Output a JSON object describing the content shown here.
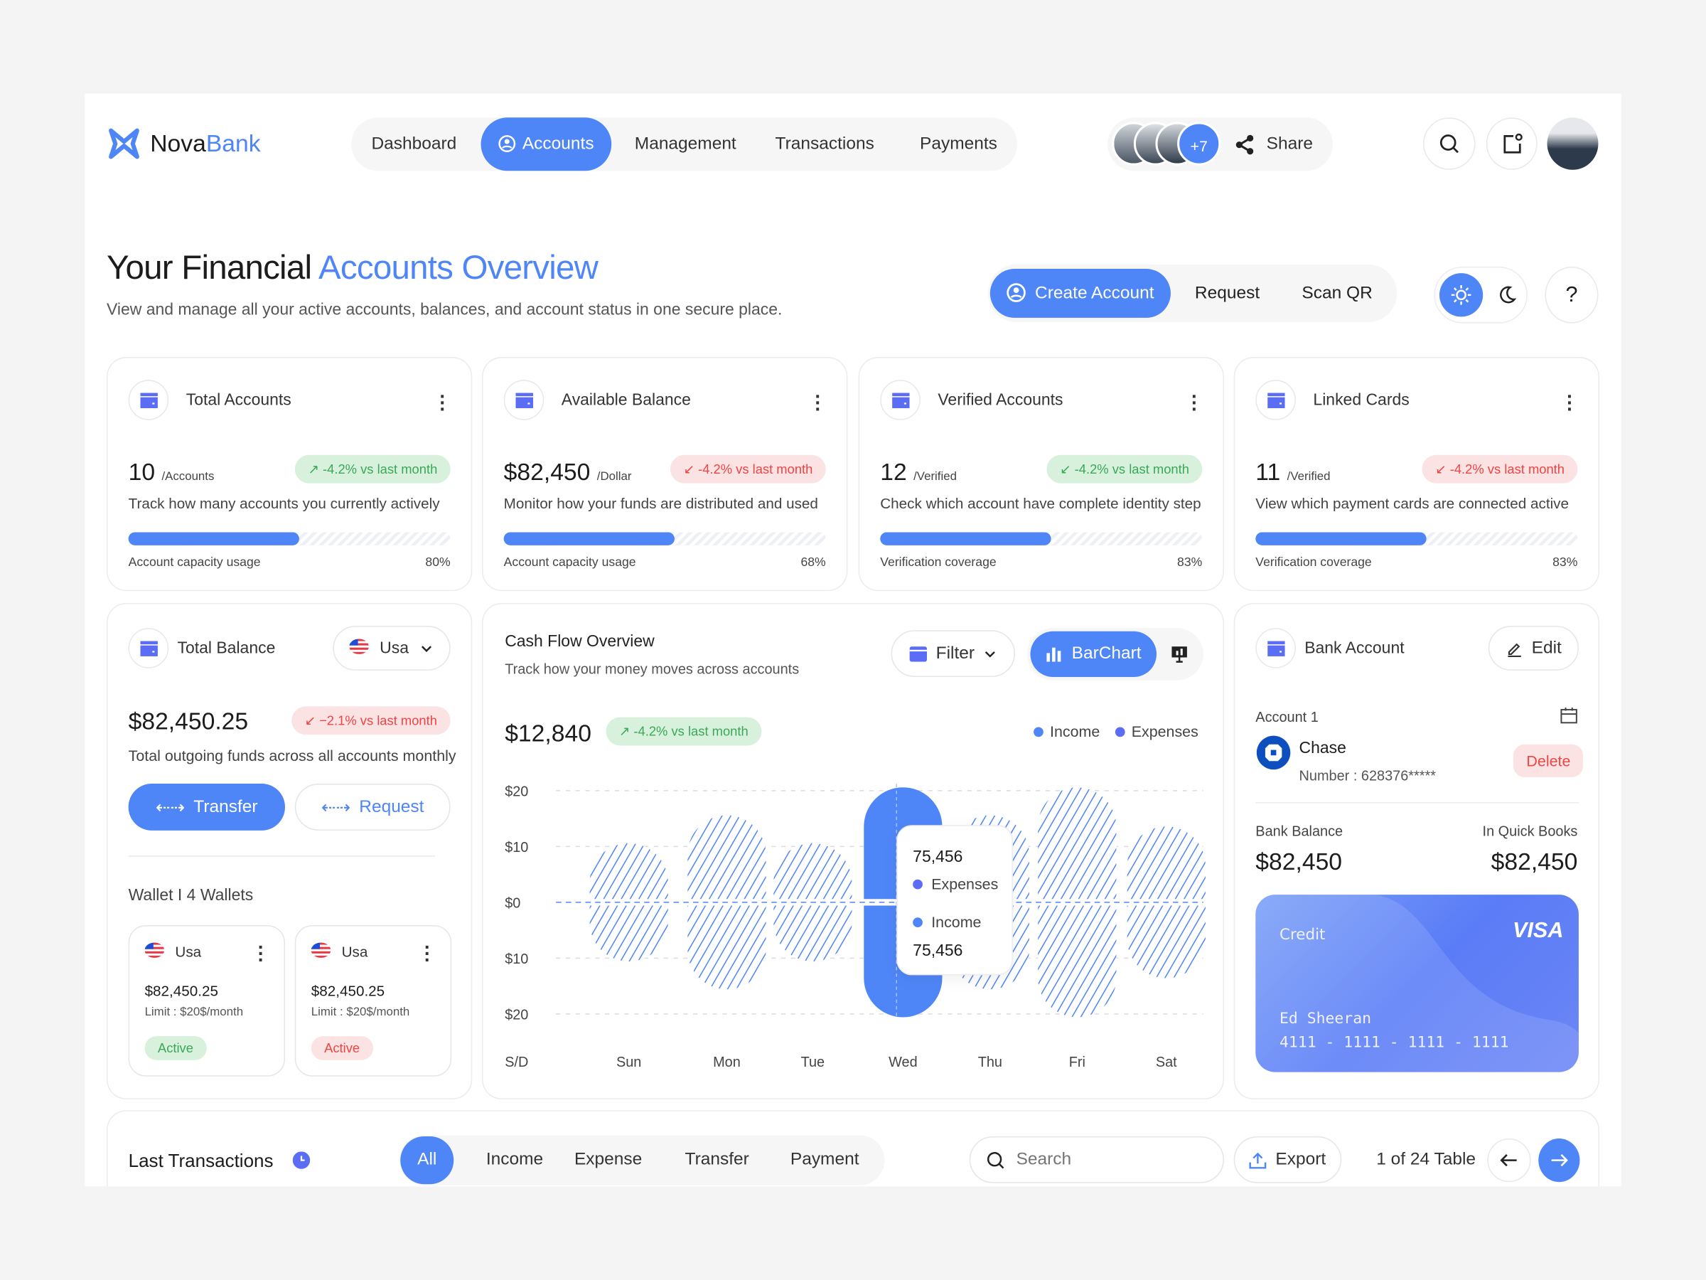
{
  "brand": {
    "name_part1": "Nova",
    "name_part2": "Bank"
  },
  "nav": {
    "items": [
      {
        "label": "Dashboard"
      },
      {
        "label": "Accounts",
        "active": true
      },
      {
        "label": "Management"
      },
      {
        "label": "Transactions"
      },
      {
        "label": "Payments"
      }
    ]
  },
  "team": {
    "extra_count": "+7",
    "share_label": "Share"
  },
  "header": {
    "title_part1": "Your Financial",
    "title_part2": "Accounts Overview",
    "subtitle": "View and manage all your active accounts, balances, and account status in one secure place.",
    "create_label": "Create Account",
    "request_label": "Request",
    "scan_label": "Scan QR",
    "help": "?"
  },
  "stats": [
    {
      "title": "Total Accounts",
      "value": "10",
      "unit": "/Accounts",
      "change": "-4.2% vs last month",
      "trend": "up",
      "desc": "Track how many accounts you currently actively",
      "progress_label": "Account capacity usage",
      "progress_value": "80%",
      "progress_fill": 0.53
    },
    {
      "title": "Available Balance",
      "value": "$82,450",
      "unit": "/Dollar",
      "change": "-4.2% vs last month",
      "trend": "down",
      "desc": "Monitor how your funds are distributed and used",
      "progress_label": "Account capacity usage",
      "progress_value": "68%",
      "progress_fill": 0.53
    },
    {
      "title": "Verified Accounts",
      "value": "12",
      "unit": "/Verified",
      "change": "-4.2% vs last month",
      "trend": "down-green",
      "desc": "Check which account have complete identity step",
      "progress_label": "Verification coverage",
      "progress_value": "83%",
      "progress_fill": 0.53
    },
    {
      "title": "Linked Cards",
      "value": "11",
      "unit": "/Verified",
      "change": "-4.2% vs last month",
      "trend": "down",
      "desc": "View which payment cards are connected active",
      "progress_label": "Verification coverage",
      "progress_value": "83%",
      "progress_fill": 0.53
    }
  ],
  "balance": {
    "title": "Total Balance",
    "country": "Usa",
    "value": "$82,450.25",
    "change": "−2.1% vs last month",
    "desc": "Total outgoing funds across all accounts monthly",
    "transfer_label": "Transfer",
    "request_label": "Request",
    "wallet_label": "Wallet I 4 Wallets",
    "wallets": [
      {
        "country": "Usa",
        "amount": "$82,450.25",
        "limit": "Limit : $20$/month",
        "status": "Active",
        "status_color": "green"
      },
      {
        "country": "Usa",
        "amount": "$82,450.25",
        "limit": "Limit : $20$/month",
        "status": "Active",
        "status_color": "red"
      }
    ]
  },
  "cashflow": {
    "title": "Cash Flow Overview",
    "subtitle": "Track how your money moves across accounts",
    "filter_label": "Filter",
    "chart_type_label": "BarChart",
    "total": "$12,840",
    "change": "-4.2% vs last month",
    "tooltip": {
      "expenses_value": "75,456",
      "expenses_label": "Expenses",
      "income_label": "Income",
      "income_value": "75,456"
    }
  },
  "chart_data": {
    "type": "bar",
    "categories": [
      "Sun",
      "Mon",
      "Tue",
      "Wed",
      "Thu",
      "Fri",
      "Sat"
    ],
    "x_corner_label": "S/D",
    "y_ticks": [
      "$20",
      "$10",
      "$0",
      "$10",
      "$20"
    ],
    "ylim": [
      -20,
      20
    ],
    "grid": true,
    "legend": "top-right",
    "highlighted": "Wed",
    "series": [
      {
        "name": "Income",
        "color": "#4f86f7",
        "values": [
          10,
          15,
          10,
          20,
          15,
          20,
          13
        ]
      },
      {
        "name": "Expenses",
        "color": "#5b6cf5",
        "values": [
          10,
          15,
          10,
          20,
          15,
          20,
          13
        ]
      }
    ]
  },
  "bank": {
    "title": "Bank Account",
    "edit_label": "Edit",
    "account_label": "Account 1",
    "bank_name": "Chase",
    "number": "Number : 628376*****",
    "delete_label": "Delete",
    "balance_label": "Bank Balance",
    "balance_value": "$82,450",
    "qb_label": "In Quick Books",
    "qb_value": "$82,450",
    "card": {
      "type": "Credit",
      "brand": "VISA",
      "holder": "Ed Sheeran",
      "number": "4111 - 1111 - 1111 - 1111"
    }
  },
  "transactions": {
    "title": "Last Transactions",
    "tabs": [
      "All",
      "Income",
      "Expense",
      "Transfer",
      "Payment"
    ],
    "search_placeholder": "Search",
    "export_label": "Export",
    "pagination": "1 of 24 Table"
  },
  "colors": {
    "accent": "#4f86f7",
    "positive": "#3aa857",
    "negative": "#ef4444"
  }
}
